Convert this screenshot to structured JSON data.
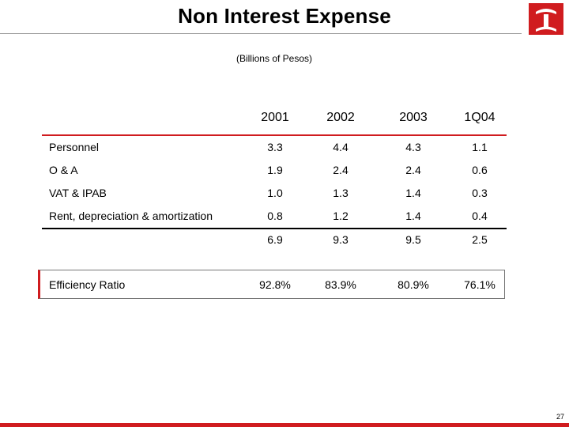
{
  "title": "Non Interest Expense",
  "subtitle": "(Billions of Pesos)",
  "colors": {
    "accent": "#d01c1f"
  },
  "logo": {
    "icon": "bank-logo-icon"
  },
  "table": {
    "columns": [
      "2001",
      "2002",
      "2003",
      "1Q04"
    ],
    "rows": [
      {
        "label": "Personnel",
        "values": [
          "3.3",
          "4.4",
          "4.3",
          "1.1"
        ]
      },
      {
        "label": "O & A",
        "values": [
          "1.9",
          "2.4",
          "2.4",
          "0.6"
        ]
      },
      {
        "label": "VAT & IPAB",
        "values": [
          "1.0",
          "1.3",
          "1.4",
          "0.3"
        ]
      },
      {
        "label": "Rent, depreciation & amortization",
        "values": [
          "0.8",
          "1.2",
          "1.4",
          "0.4"
        ]
      }
    ],
    "totals": [
      "6.9",
      "9.3",
      "9.5",
      "2.5"
    ]
  },
  "efficiency": {
    "label": "Efficiency Ratio",
    "values": [
      "92.8%",
      "83.9%",
      "80.9%",
      "76.1%"
    ]
  },
  "page_number": "27"
}
